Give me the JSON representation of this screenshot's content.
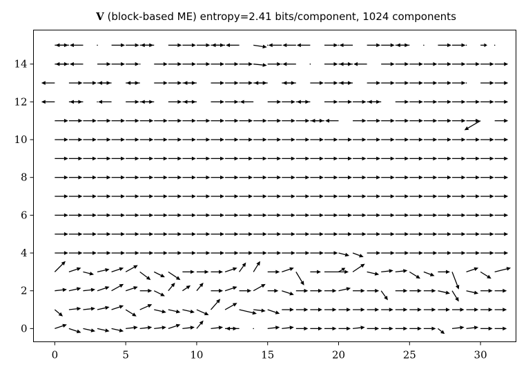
{
  "chart_data": {
    "type": "quiver",
    "title_symbol": "V",
    "title_rest": " (block-based ME) entropy=2.41 bits/component, 1024 components",
    "xlim": [
      -1.5,
      32.5
    ],
    "ylim": [
      -0.7,
      15.8
    ],
    "xticks": [
      0,
      5,
      10,
      15,
      20,
      25,
      30
    ],
    "yticks": [
      0,
      2,
      4,
      6,
      8,
      10,
      12,
      14
    ],
    "grid": false,
    "columns": 32,
    "rows": 16,
    "arrow_color": "#000000",
    "rows_default": {
      "4": [
        1.0,
        0
      ],
      "5": [
        1.0,
        0
      ],
      "6": [
        1.0,
        0
      ],
      "7": [
        1.0,
        0
      ],
      "8": [
        1.0,
        0
      ],
      "9": [
        1.0,
        0
      ],
      "10": [
        1.0,
        0
      ],
      "11": [
        1.0,
        0
      ]
    },
    "row_overrides": {
      "4": {
        "20": [
          0.8,
          -0.2
        ],
        "21": [
          0.8,
          -0.3
        ]
      },
      "11": {
        "19": [
          -1.0,
          0
        ],
        "20": [
          -1.0,
          0
        ],
        "30": [
          -1.2,
          -0.7
        ],
        "31": [
          1.0,
          0
        ]
      }
    },
    "rows_explicit": {
      "15": [
        [
          1,
          0
        ],
        [
          -1,
          0
        ],
        [
          -1,
          0
        ],
        [
          0,
          0
        ],
        [
          1,
          0
        ],
        [
          1,
          0
        ],
        [
          1,
          0
        ],
        [
          -1,
          0
        ],
        [
          1,
          0
        ],
        [
          1,
          0
        ],
        [
          1,
          0
        ],
        [
          1,
          0
        ],
        [
          -1,
          0
        ],
        [
          -1,
          0
        ],
        [
          1,
          -0.15
        ],
        [
          0,
          0
        ],
        [
          -1,
          0
        ],
        [
          -1,
          0
        ],
        [
          -1,
          0
        ],
        [
          1,
          0
        ],
        [
          0,
          0
        ],
        [
          -1,
          0
        ],
        [
          1,
          0
        ],
        [
          1,
          0
        ],
        [
          1,
          0
        ],
        [
          -1,
          0
        ],
        [
          0,
          0
        ],
        [
          1,
          0
        ],
        [
          1,
          0
        ],
        [
          0,
          0
        ],
        [
          0.5,
          0
        ],
        [
          0,
          0
        ]
      ],
      "14": [
        [
          1,
          0
        ],
        [
          -1,
          0
        ],
        [
          -1,
          0
        ],
        [
          1,
          0
        ],
        [
          1,
          0
        ],
        [
          1,
          0
        ],
        [
          0,
          0
        ],
        [
          1,
          0
        ],
        [
          1,
          0
        ],
        [
          1,
          0
        ],
        [
          1,
          0
        ],
        [
          1,
          0
        ],
        [
          1,
          0
        ],
        [
          1,
          0
        ],
        [
          1,
          -0.1
        ],
        [
          1,
          0
        ],
        [
          0,
          0
        ],
        [
          -1,
          0
        ],
        [
          0,
          0
        ],
        [
          1,
          0
        ],
        [
          1,
          0
        ],
        [
          -1,
          0
        ],
        [
          -1,
          0
        ],
        [
          1,
          0
        ],
        [
          1,
          0
        ],
        [
          1,
          0
        ],
        [
          1,
          0
        ],
        [
          1,
          0
        ],
        [
          1,
          0
        ],
        [
          1,
          0
        ],
        [
          1,
          0
        ],
        [
          1,
          0
        ]
      ],
      "13": [
        [
          -1,
          0
        ],
        [
          1,
          0
        ],
        [
          1,
          0
        ],
        [
          1,
          0
        ],
        [
          -1,
          0
        ],
        [
          1,
          0
        ],
        [
          -1,
          0
        ],
        [
          1,
          0
        ],
        [
          1,
          0
        ],
        [
          1,
          0
        ],
        [
          -1,
          0
        ],
        [
          1,
          0
        ],
        [
          1,
          0
        ],
        [
          1,
          0
        ],
        [
          1,
          0
        ],
        [
          -1,
          0
        ],
        [
          1,
          0
        ],
        [
          -1,
          0
        ],
        [
          1,
          0
        ],
        [
          1,
          0
        ],
        [
          1,
          0
        ],
        [
          -1,
          0
        ],
        [
          1,
          0
        ],
        [
          1,
          0
        ],
        [
          1,
          0
        ],
        [
          1,
          0
        ],
        [
          1,
          0
        ],
        [
          1,
          0
        ],
        [
          1,
          0
        ],
        [
          0,
          0
        ],
        [
          1,
          0
        ],
        [
          1,
          0
        ]
      ],
      "12": [
        [
          -1,
          0
        ],
        [
          1,
          0
        ],
        [
          -1,
          0
        ],
        [
          0,
          0
        ],
        [
          -1,
          0
        ],
        [
          1,
          0
        ],
        [
          1,
          0
        ],
        [
          -1,
          0
        ],
        [
          1,
          0
        ],
        [
          1,
          0
        ],
        [
          -1,
          0
        ],
        [
          1,
          0
        ],
        [
          1,
          0
        ],
        [
          0,
          0
        ],
        [
          -1,
          0
        ],
        [
          1,
          0
        ],
        [
          1,
          0
        ],
        [
          1,
          0
        ],
        [
          -1,
          0
        ],
        [
          1,
          0
        ],
        [
          1,
          0
        ],
        [
          1,
          0
        ],
        [
          1,
          0
        ],
        [
          -1,
          0
        ],
        [
          1,
          0
        ],
        [
          1,
          0
        ],
        [
          1,
          0
        ],
        [
          1,
          0
        ],
        [
          1,
          0
        ],
        [
          1,
          0
        ],
        [
          1,
          0
        ],
        [
          1,
          0
        ]
      ],
      "3": [
        [
          0.8,
          0.8
        ],
        [
          0.9,
          0.3
        ],
        [
          0.8,
          -0.2
        ],
        [
          0.9,
          0.2
        ],
        [
          0.9,
          0.3
        ],
        [
          0.9,
          0.5
        ],
        [
          0.8,
          -0.6
        ],
        [
          0.8,
          -0.4
        ],
        [
          0.9,
          -0.6
        ],
        [
          0.9,
          0
        ],
        [
          0.9,
          0
        ],
        [
          0.9,
          0
        ],
        [
          0.9,
          0.3
        ],
        [
          0.5,
          0.7
        ],
        [
          0.5,
          0.8
        ],
        [
          0.9,
          0
        ],
        [
          0.9,
          0.3
        ],
        [
          0.6,
          -1.0
        ],
        [
          0.8,
          0
        ],
        [
          1.8,
          0
        ],
        [
          0.5,
          0.3
        ],
        [
          0.9,
          0.6
        ],
        [
          0.9,
          -0.2
        ],
        [
          0.9,
          0.1
        ],
        [
          0.9,
          0.1
        ],
        [
          0.8,
          -0.5
        ],
        [
          0.8,
          -0.3
        ],
        [
          0.9,
          0
        ],
        [
          0.5,
          -1.3
        ],
        [
          0.9,
          0.3
        ],
        [
          0.8,
          -0.5
        ],
        [
          1.2,
          0.3
        ]
      ],
      "2": [
        [
          0.9,
          0.1
        ],
        [
          0.9,
          0.2
        ],
        [
          0.9,
          0.1
        ],
        [
          0.9,
          0.3
        ],
        [
          0.9,
          0.5
        ],
        [
          0.9,
          0.3
        ],
        [
          0.9,
          0
        ],
        [
          0.8,
          -0.4
        ],
        [
          0.5,
          0.6
        ],
        [
          0.6,
          0.4
        ],
        [
          0.5,
          0.6
        ],
        [
          0.9,
          0
        ],
        [
          0.9,
          0.3
        ],
        [
          0.9,
          0
        ],
        [
          0.9,
          0.5
        ],
        [
          0.8,
          0
        ],
        [
          0.9,
          -0.3
        ],
        [
          0.9,
          0
        ],
        [
          0.9,
          0
        ],
        [
          0.9,
          0
        ],
        [
          0.9,
          0.2
        ],
        [
          0.9,
          0
        ],
        [
          0.9,
          0
        ],
        [
          0.5,
          -0.7
        ],
        [
          0.9,
          0
        ],
        [
          0.9,
          0
        ],
        [
          0.9,
          0
        ],
        [
          0.9,
          -0.2
        ],
        [
          0.5,
          -0.8
        ],
        [
          0.9,
          -0.2
        ],
        [
          0.9,
          0
        ],
        [
          0.9,
          0
        ]
      ],
      "1": [
        [
          0.6,
          -0.5
        ],
        [
          0.9,
          0.1
        ],
        [
          0.9,
          0.1
        ],
        [
          0.9,
          0.2
        ],
        [
          0.9,
          0.3
        ],
        [
          0.8,
          -0.5
        ],
        [
          0.9,
          0.4
        ],
        [
          0.9,
          -0.2
        ],
        [
          0.9,
          -0.2
        ],
        [
          0.9,
          -0.2
        ],
        [
          0.9,
          -0.4
        ],
        [
          0.7,
          0.8
        ],
        [
          0.9,
          0.5
        ],
        [
          1.3,
          -0.3
        ],
        [
          0.9,
          -0.1
        ],
        [
          0.9,
          -0.3
        ],
        [
          0.9,
          0
        ],
        [
          0.9,
          0
        ],
        [
          0.9,
          0
        ],
        [
          0.9,
          0
        ],
        [
          0.9,
          0
        ],
        [
          0.9,
          0
        ],
        [
          0.9,
          0
        ],
        [
          0.9,
          0
        ],
        [
          0.9,
          0
        ],
        [
          0.9,
          0
        ],
        [
          0.9,
          0
        ],
        [
          0.9,
          0
        ],
        [
          0.9,
          0
        ],
        [
          0.9,
          0
        ],
        [
          0.9,
          0
        ],
        [
          0.9,
          0
        ]
      ],
      "0": [
        [
          0.9,
          0.3
        ],
        [
          0.9,
          -0.3
        ],
        [
          0.9,
          -0.2
        ],
        [
          0.9,
          -0.2
        ],
        [
          0.9,
          -0.2
        ],
        [
          0.9,
          0.1
        ],
        [
          0.9,
          0.1
        ],
        [
          0.9,
          0.1
        ],
        [
          0.9,
          0.3
        ],
        [
          0.9,
          0.1
        ],
        [
          0.5,
          0.6
        ],
        [
          0.9,
          0.1
        ],
        [
          0.9,
          0
        ],
        [
          -1,
          0
        ],
        [
          0,
          0
        ],
        [
          0.9,
          0.1
        ],
        [
          0.9,
          0.1
        ],
        [
          0.9,
          0
        ],
        [
          0.9,
          0
        ],
        [
          0.9,
          0
        ],
        [
          0.9,
          0
        ],
        [
          0.9,
          0.1
        ],
        [
          0.9,
          0
        ],
        [
          0.9,
          0
        ],
        [
          0.9,
          0
        ],
        [
          0.9,
          0
        ],
        [
          0.9,
          0
        ],
        [
          0.5,
          -0.4
        ],
        [
          0.9,
          0.1
        ],
        [
          0.9,
          0.1
        ],
        [
          0.9,
          0
        ],
        [
          0.9,
          0
        ]
      ]
    }
  }
}
